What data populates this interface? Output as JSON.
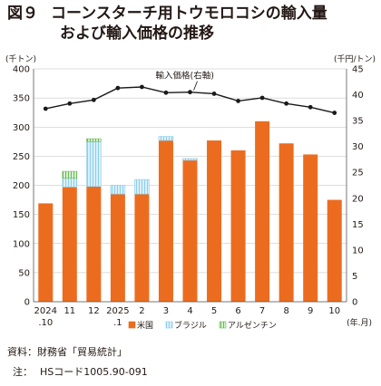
{
  "figure": {
    "number": "図９",
    "title_line1": "コーンスターチ用トウモロコシの輸入量",
    "title_line2": "および輸入価格の推移"
  },
  "source": "資料：財務省「貿易統計」",
  "note": {
    "label": "注：",
    "text": "HSコード1005.90-091"
  },
  "chart_data": {
    "type": "bar",
    "stacked": true,
    "categories": [
      "2024 .10",
      "11",
      "12",
      "2025 .1",
      "2",
      "3",
      "4",
      "5",
      "6",
      "7",
      "8",
      "9",
      "10"
    ],
    "x_category_lines": [
      [
        "2024",
        ".10"
      ],
      [
        "11"
      ],
      [
        "12"
      ],
      [
        "2025",
        ".1"
      ],
      [
        "2"
      ],
      [
        "3"
      ],
      [
        "4"
      ],
      [
        "5"
      ],
      [
        "6"
      ],
      [
        "7"
      ],
      [
        "8"
      ],
      [
        "9"
      ],
      [
        "10"
      ]
    ],
    "x_unit": "(年.月)",
    "y_left": {
      "unit": "(千トン)",
      "min": 0,
      "max": 400,
      "ticks": [
        0,
        50,
        100,
        150,
        200,
        250,
        300,
        350,
        400
      ]
    },
    "y_right": {
      "unit": "(千円/トン)",
      "min": 0,
      "max": 45,
      "ticks": [
        0,
        5,
        10,
        15,
        20,
        25,
        30,
        35,
        40,
        45
      ]
    },
    "series": [
      {
        "name": "米国",
        "kind": "bar",
        "axis": "left",
        "color": "#ec6c1f",
        "values": [
          169,
          197,
          198,
          185,
          185,
          277,
          243,
          277,
          260,
          310,
          272,
          253,
          175
        ]
      },
      {
        "name": "ブラジル",
        "kind": "bar",
        "axis": "left",
        "color": "#cce9f6",
        "hatch": "#8ecfea",
        "values": [
          0,
          15,
          77,
          15,
          25,
          7,
          3,
          0,
          0,
          0,
          0,
          0,
          0
        ]
      },
      {
        "name": "アルゼンチン",
        "kind": "bar",
        "axis": "left",
        "color": "#c9e8c1",
        "hatch": "#7cc36b",
        "values": [
          0,
          12,
          5,
          0,
          0,
          0,
          0,
          0,
          0,
          0,
          0,
          0,
          0
        ]
      },
      {
        "name": "輸入価格(右軸)",
        "kind": "line",
        "axis": "right",
        "color": "#1a1a1a",
        "values": [
          37.3,
          38.3,
          39.0,
          41.3,
          41.5,
          40.4,
          40.5,
          40.2,
          38.8,
          39.4,
          38.3,
          37.6,
          36.5
        ]
      }
    ],
    "line_label": "輸入価格(右軸)",
    "legend": {
      "position": "bottom",
      "items": [
        "米国",
        "ブラジル",
        "アルゼンチン"
      ]
    },
    "grid": true
  }
}
